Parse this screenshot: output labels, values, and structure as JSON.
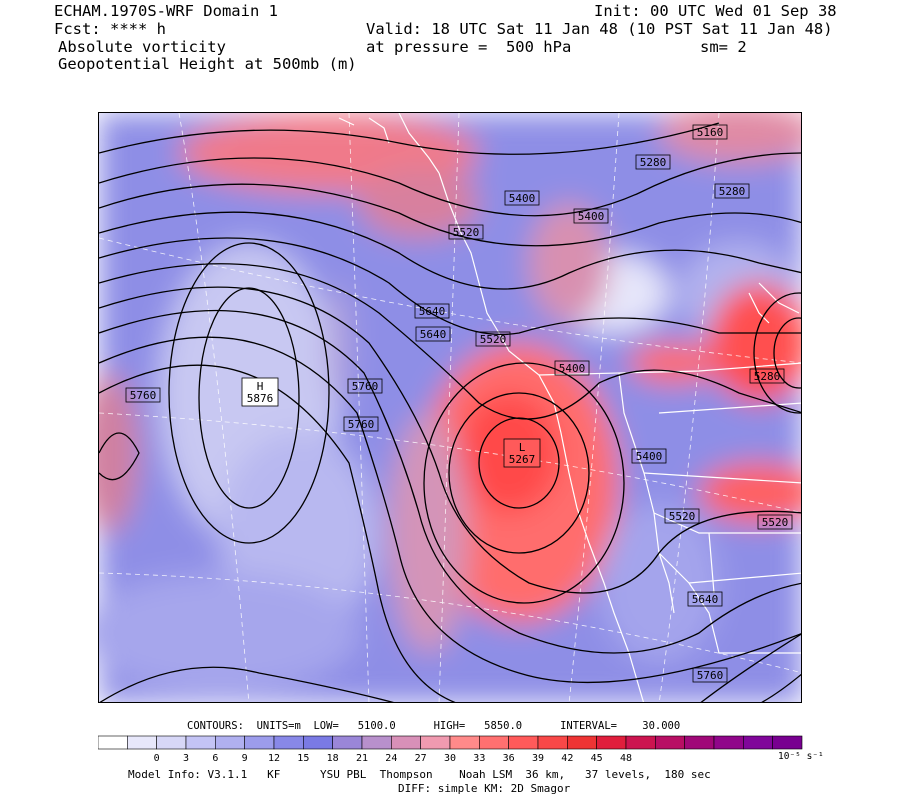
{
  "header": {
    "model_domain": "ECHAM.1970S-WRF Domain 1",
    "init": "Init: 00 UTC Wed 01 Sep 38",
    "fcst": "Fcst: **** h",
    "valid": "Valid: 18 UTC Sat 11 Jan 48 (10 PST Sat 11 Jan 48)",
    "field1": "Absolute vorticity",
    "pressure": "at pressure =  500 hPa",
    "smoothing": "sm= 2",
    "field2": "Geopotential Height at 500mb (m)"
  },
  "contour_labels": [
    {
      "text": "5160"
    },
    {
      "text": "5280"
    },
    {
      "text": "5280"
    },
    {
      "text": "5400"
    },
    {
      "text": "5400"
    },
    {
      "text": "5520"
    },
    {
      "text": "5640"
    },
    {
      "text": "5640"
    },
    {
      "text": "5520"
    },
    {
      "text": "5400"
    },
    {
      "text": "5280"
    },
    {
      "text": "5760"
    },
    {
      "text": "5760"
    },
    {
      "text": "5760"
    },
    {
      "text": "5400"
    },
    {
      "text": "5520"
    },
    {
      "text": "5520"
    },
    {
      "text": "5640"
    },
    {
      "text": "5760"
    }
  ],
  "pressure_centers": [
    {
      "letter": "H",
      "value": "5876"
    },
    {
      "letter": "L",
      "value": "5267"
    }
  ],
  "contour_info": {
    "label": "CONTOURS:",
    "units": "UNITS=m",
    "low": "LOW=   5100.0",
    "high": "HIGH=   5850.0",
    "interval": "INTERVAL=    30.000"
  },
  "colorbar": {
    "labels": [
      "0",
      "3",
      "6",
      "9",
      "12",
      "15",
      "18",
      "21",
      "24",
      "27",
      "30",
      "33",
      "36",
      "39",
      "42",
      "45",
      "48"
    ],
    "units": "10⁻⁵ s⁻¹",
    "colors": [
      "#ffffff",
      "#e8e8fb",
      "#d7d7f7",
      "#c4c4f5",
      "#b0b0f0",
      "#9c9cec",
      "#8888e8",
      "#7a7ae4",
      "#9a86d8",
      "#b890cc",
      "#d890b8",
      "#f09ab0",
      "#ff8a8a",
      "#ff7070",
      "#ff5a5a",
      "#f84848",
      "#ee3434",
      "#e01e3c",
      "#cc1450",
      "#b80e64",
      "#a00878",
      "#90068a",
      "#80069a",
      "#780090"
    ]
  },
  "model_info": {
    "line1": "Model Info: V3.1.1   KF      YSU PBL  Thompson    Noah LSM  36 km,   37 levels,  180 sec",
    "line2": "DIFF: simple KM: 2D Smagor"
  }
}
